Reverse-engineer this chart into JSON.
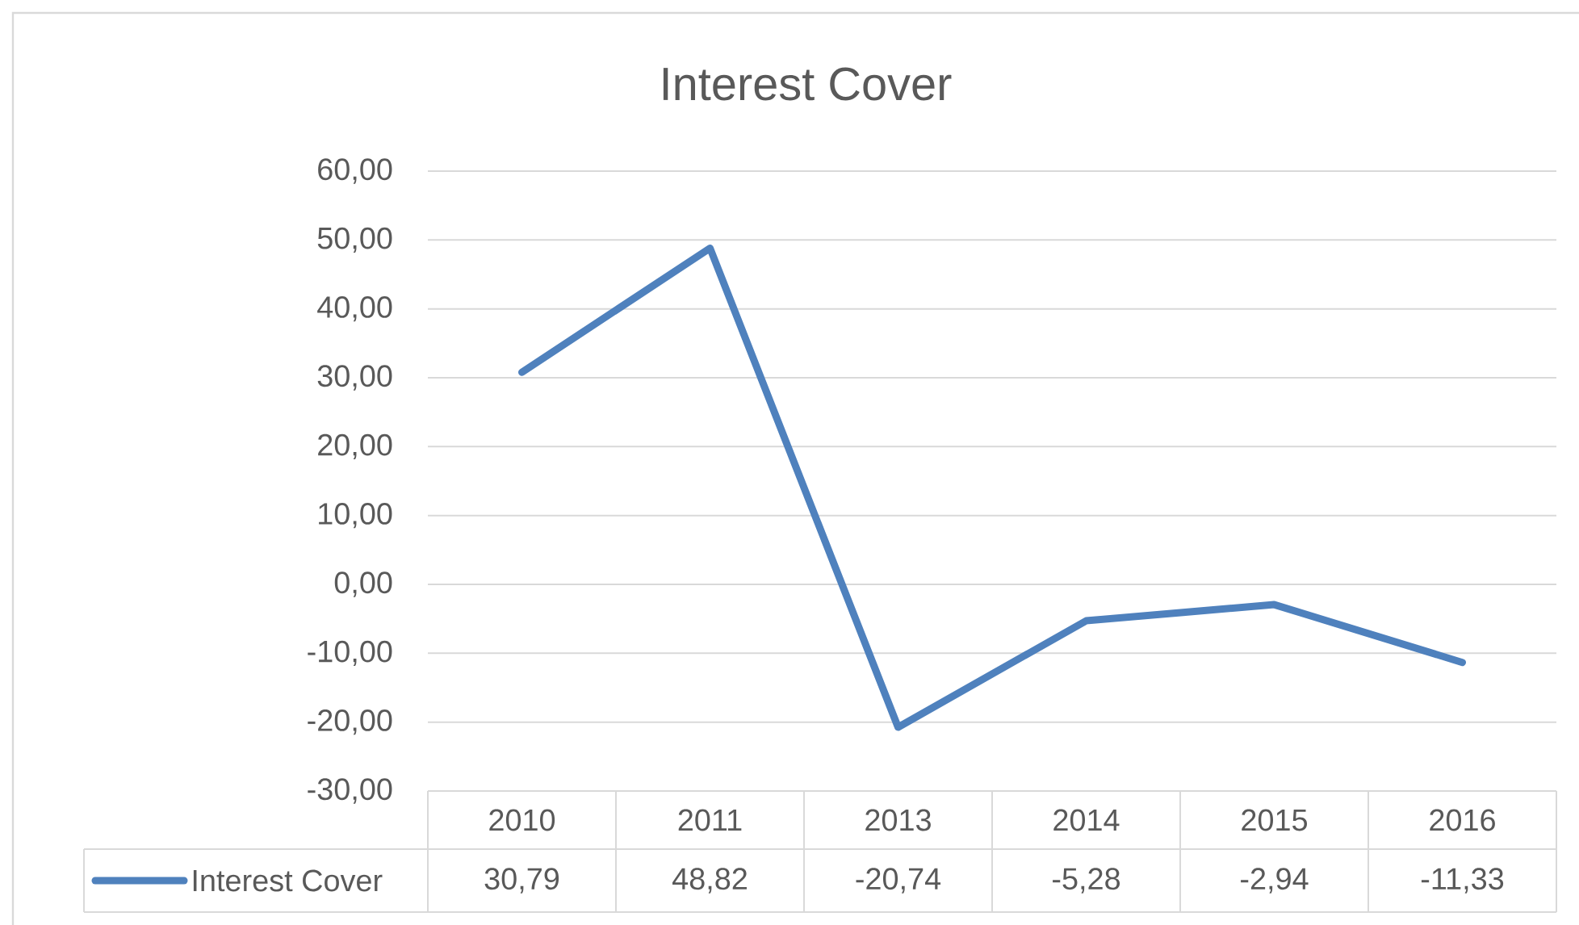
{
  "chart_data": {
    "type": "line",
    "title": "Interest Cover",
    "categories": [
      "2010",
      "2011",
      "2013",
      "2014",
      "2015",
      "2016"
    ],
    "series": [
      {
        "name": "Interest Cover",
        "color": "#4f81bd",
        "values": [
          30.79,
          48.82,
          -20.74,
          -5.28,
          -2.94,
          -11.33
        ],
        "value_labels": [
          "30,79",
          "48,82",
          "-20,74",
          "-5,28",
          "-2,94",
          "-11,33"
        ]
      }
    ],
    "ylim": [
      -30,
      60
    ],
    "yticks": [
      {
        "value": -30,
        "label": "-30,00"
      },
      {
        "value": -20,
        "label": "-20,00"
      },
      {
        "value": -10,
        "label": "-10,00"
      },
      {
        "value": 0,
        "label": "0,00"
      },
      {
        "value": 10,
        "label": "10,00"
      },
      {
        "value": 20,
        "label": "20,00"
      },
      {
        "value": 30,
        "label": "30,00"
      },
      {
        "value": 40,
        "label": "40,00"
      },
      {
        "value": 50,
        "label": "50,00"
      },
      {
        "value": 60,
        "label": "60,00"
      }
    ],
    "grid": "y",
    "legend": "bottom"
  }
}
